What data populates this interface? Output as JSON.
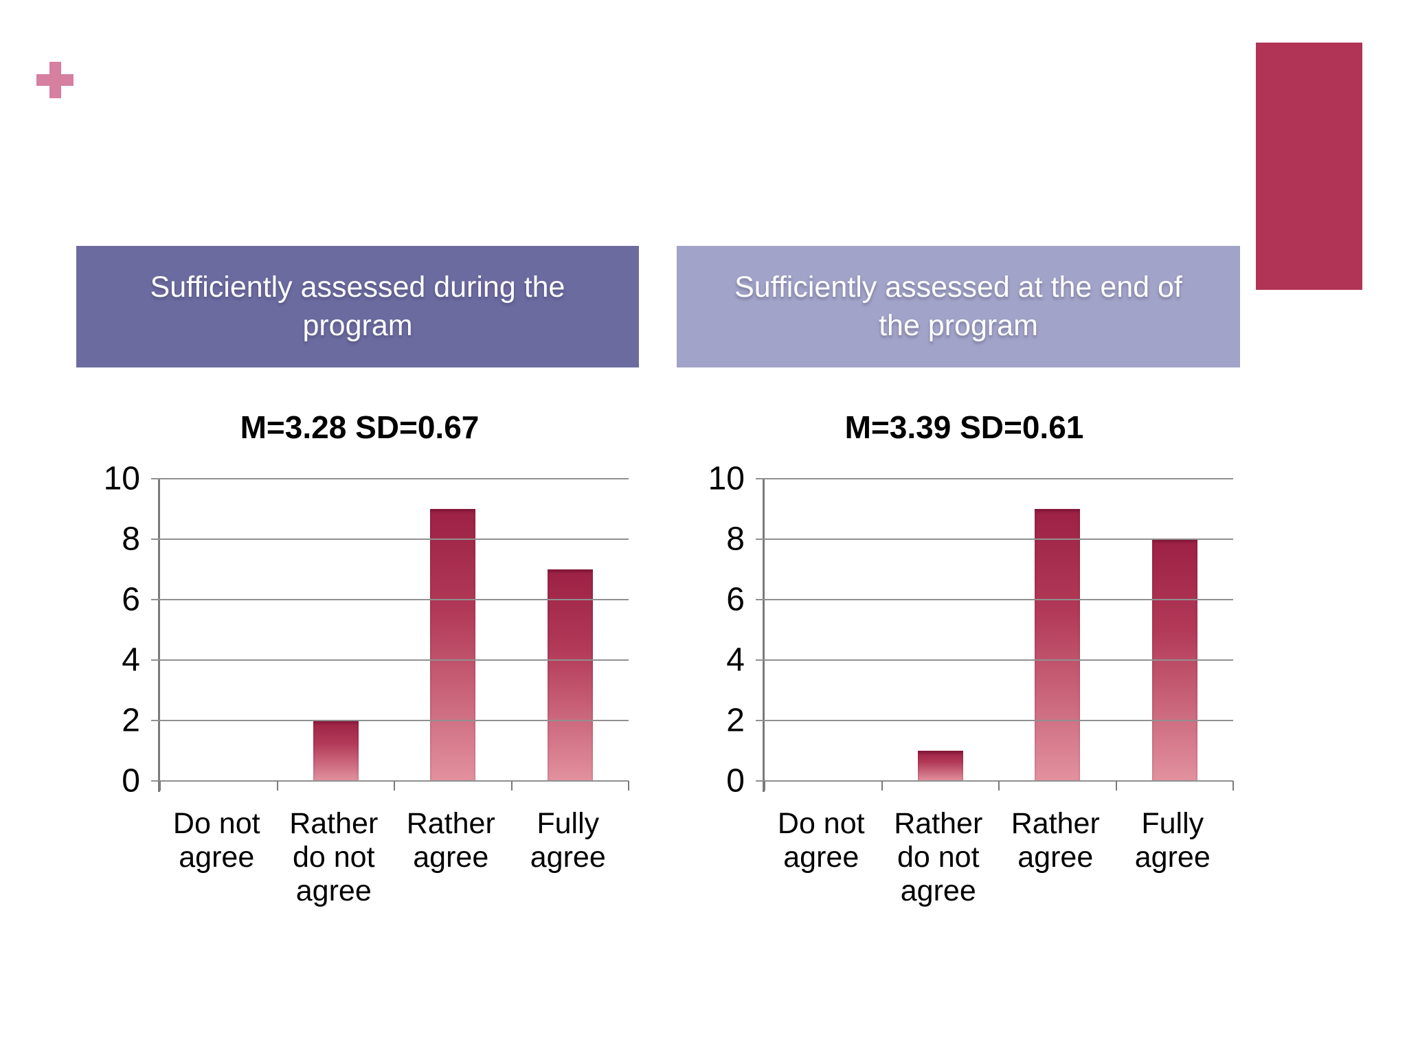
{
  "slide": {
    "background": "#ffffff",
    "colors": {
      "plus_icon": "#d67f9f",
      "side_accent_bar": "#b13457",
      "header_left_bg": "#6c6ba0",
      "header_right_bg": "#a2a3c8",
      "bar_gradient_top": "#9c2145",
      "bar_gradient_bottom": "#e2919f"
    },
    "headers": [
      {
        "lines": [
          "Sufficiently assessed during the",
          "program"
        ],
        "bg": "#6c6ba0"
      },
      {
        "lines": [
          "Sufficiently assessed at the end of",
          "the program"
        ],
        "bg": "#a2a3c8"
      }
    ]
  },
  "chart_data": [
    {
      "type": "bar",
      "title": "M=3.28 SD=0.67",
      "stats": {
        "mean": "3.28",
        "sd": "0.67"
      },
      "categories": [
        "Do not agree",
        "Rather do not agree",
        "Rather agree",
        "Fully agree"
      ],
      "values": [
        0,
        2,
        9,
        7
      ],
      "xlabel": "",
      "ylabel": "",
      "ylim": [
        0,
        10
      ],
      "yticks": [
        0,
        2,
        4,
        6,
        8,
        10
      ],
      "grid": true,
      "legend": false
    },
    {
      "type": "bar",
      "title": "M=3.39 SD=0.61",
      "stats": {
        "mean": "3.39",
        "sd": "0.61"
      },
      "categories": [
        "Do not agree",
        "Rather do not agree",
        "Rather agree",
        "Fully agree"
      ],
      "values": [
        0,
        1,
        9,
        8
      ],
      "xlabel": "",
      "ylabel": "",
      "ylim": [
        0,
        10
      ],
      "yticks": [
        0,
        2,
        4,
        6,
        8,
        10
      ],
      "grid": true,
      "legend": false
    }
  ]
}
